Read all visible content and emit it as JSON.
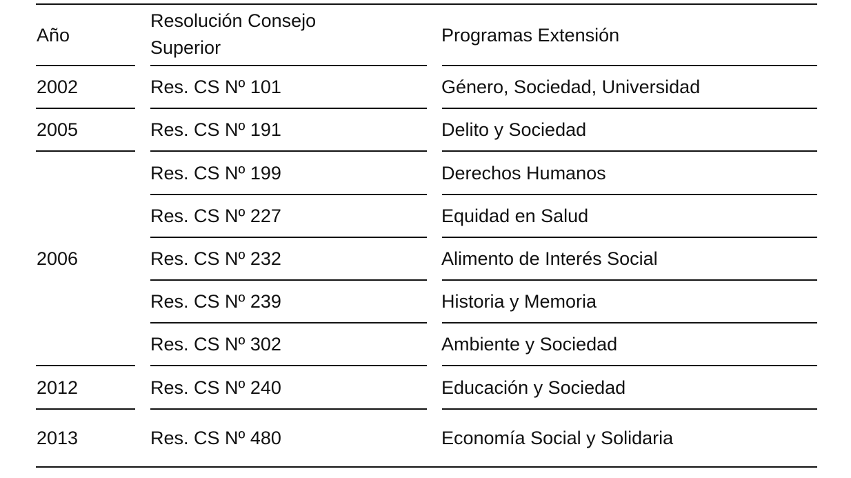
{
  "headers": {
    "year": "Año",
    "resolution": "Resolución Consejo\nSuperior",
    "resolution_line1": "Resolución Consejo",
    "resolution_line2": "Superior",
    "programs": "Programas Extensión"
  },
  "rows": [
    {
      "year": "2002",
      "resolution": "Res. CS Nº 101",
      "program": "Género, Sociedad, Universidad"
    },
    {
      "year": "2005",
      "resolution": "Res. CS Nº 191",
      "program": "Delito y Sociedad"
    },
    {
      "year": "2006",
      "resolution": "Res. CS Nº 199",
      "program": "Derechos Humanos"
    },
    {
      "year": "",
      "resolution": "Res. CS Nº 227",
      "program": "Equidad en Salud"
    },
    {
      "year": "",
      "resolution": "Res. CS Nº 232",
      "program": "Alimento de Interés Social"
    },
    {
      "year": "",
      "resolution": "Res. CS Nº 239",
      "program": "Historia y Memoria"
    },
    {
      "year": "",
      "resolution": "Res. CS Nº 302",
      "program": "Ambiente y Sociedad"
    },
    {
      "year": "2012",
      "resolution": "Res. CS Nº 240",
      "program": "Educación y Sociedad"
    },
    {
      "year": "2013",
      "resolution": "Res. CS Nº 480",
      "program": "Economía Social y Solidaria"
    }
  ]
}
